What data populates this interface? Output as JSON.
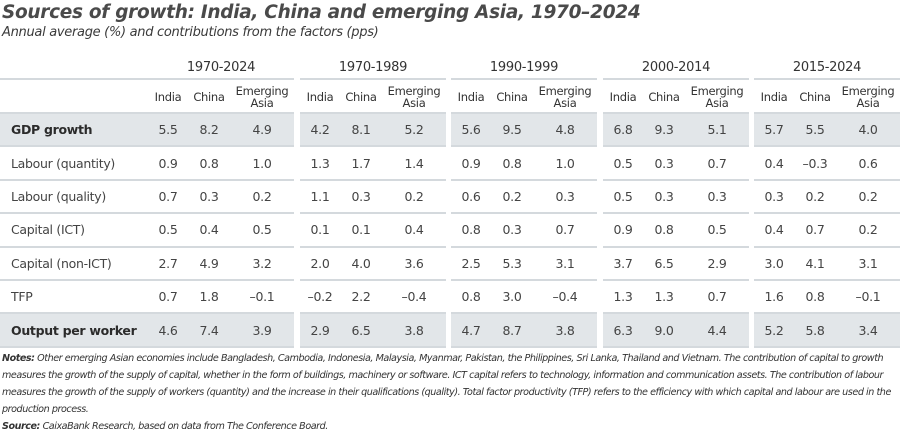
{
  "title": "Sources of growth: India, China and emerging Asia, 1970–2024",
  "subtitle": "Annual average (%) and contributions from the factors (pps)",
  "table": {
    "periods": [
      "1970-2024",
      "1970-1989",
      "1990-1999",
      "2000-2014",
      "2015-2024"
    ],
    "columns": [
      "India",
      "China",
      "Emerging Asia"
    ],
    "rows": [
      {
        "label": "GDP growth",
        "highlight": true,
        "values": [
          [
            "5.5",
            "8.2",
            "4.9"
          ],
          [
            "4.2",
            "8.1",
            "5.2"
          ],
          [
            "5.6",
            "9.5",
            "4.8"
          ],
          [
            "6.8",
            "9.3",
            "5.1"
          ],
          [
            "5.7",
            "5.5",
            "4.0"
          ]
        ]
      },
      {
        "label": "Labour (quantity)",
        "highlight": false,
        "values": [
          [
            "0.9",
            "0.8",
            "1.0"
          ],
          [
            "1.3",
            "1.7",
            "1.4"
          ],
          [
            "0.9",
            "0.8",
            "1.0"
          ],
          [
            "0.5",
            "0.3",
            "0.7"
          ],
          [
            "0.4",
            "–0.3",
            "0.6"
          ]
        ]
      },
      {
        "label": "Labour (quality)",
        "highlight": false,
        "values": [
          [
            "0.7",
            "0.3",
            "0.2"
          ],
          [
            "1.1",
            "0.3",
            "0.2"
          ],
          [
            "0.6",
            "0.2",
            "0.3"
          ],
          [
            "0.5",
            "0.3",
            "0.3"
          ],
          [
            "0.3",
            "0.2",
            "0.2"
          ]
        ]
      },
      {
        "label": "Capital (ICT)",
        "highlight": false,
        "values": [
          [
            "0.5",
            "0.4",
            "0.5"
          ],
          [
            "0.1",
            "0.1",
            "0.4"
          ],
          [
            "0.8",
            "0.3",
            "0.7"
          ],
          [
            "0.9",
            "0.8",
            "0.5"
          ],
          [
            "0.4",
            "0.7",
            "0.2"
          ]
        ]
      },
      {
        "label": "Capital (non-ICT)",
        "highlight": false,
        "values": [
          [
            "2.7",
            "4.9",
            "3.2"
          ],
          [
            "2.0",
            "4.0",
            "3.6"
          ],
          [
            "2.5",
            "5.3",
            "3.1"
          ],
          [
            "3.7",
            "6.5",
            "2.9"
          ],
          [
            "3.0",
            "4.1",
            "3.1"
          ]
        ]
      },
      {
        "label": "TFP",
        "highlight": false,
        "values": [
          [
            "0.7",
            "1.8",
            "–0.1"
          ],
          [
            "–0.2",
            "2.2",
            "–0.4"
          ],
          [
            "0.8",
            "3.0",
            "–0.4"
          ],
          [
            "1.3",
            "1.3",
            "0.7"
          ],
          [
            "1.6",
            "0.8",
            "–0.1"
          ]
        ]
      },
      {
        "label": "Output per worker",
        "highlight": true,
        "values": [
          [
            "4.6",
            "7.4",
            "3.9"
          ],
          [
            "2.9",
            "6.5",
            "3.8"
          ],
          [
            "4.7",
            "8.7",
            "3.8"
          ],
          [
            "6.3",
            "9.0",
            "4.4"
          ],
          [
            "5.2",
            "5.8",
            "3.4"
          ]
        ]
      }
    ]
  },
  "notes": {
    "label": "Notes:",
    "text": "Other emerging Asian economies include Bangladesh, Cambodia, Indonesia, Malaysia, Myanmar, Pakistan, the Philippines, Sri Lanka, Thailand and Vietnam. The contribution of capital to growth measures the growth of the supply of capital, whether in the form of buildings, machinery or software. ICT capital refers to technology, information and communication assets. The contribution of labour measures the growth of the supply of workers (quantity) and the increase in their qualifications (quality). Total factor productivity (TFP) refers to the efficiency with which capital and labour are used in the production process."
  },
  "source": {
    "label": "Source:",
    "text": "CaixaBank Research, based on data from The Conference Board."
  },
  "colors": {
    "highlight_row": "#e2e6e9",
    "rule": "#d4d9dd",
    "title": "#4a4a4a"
  }
}
